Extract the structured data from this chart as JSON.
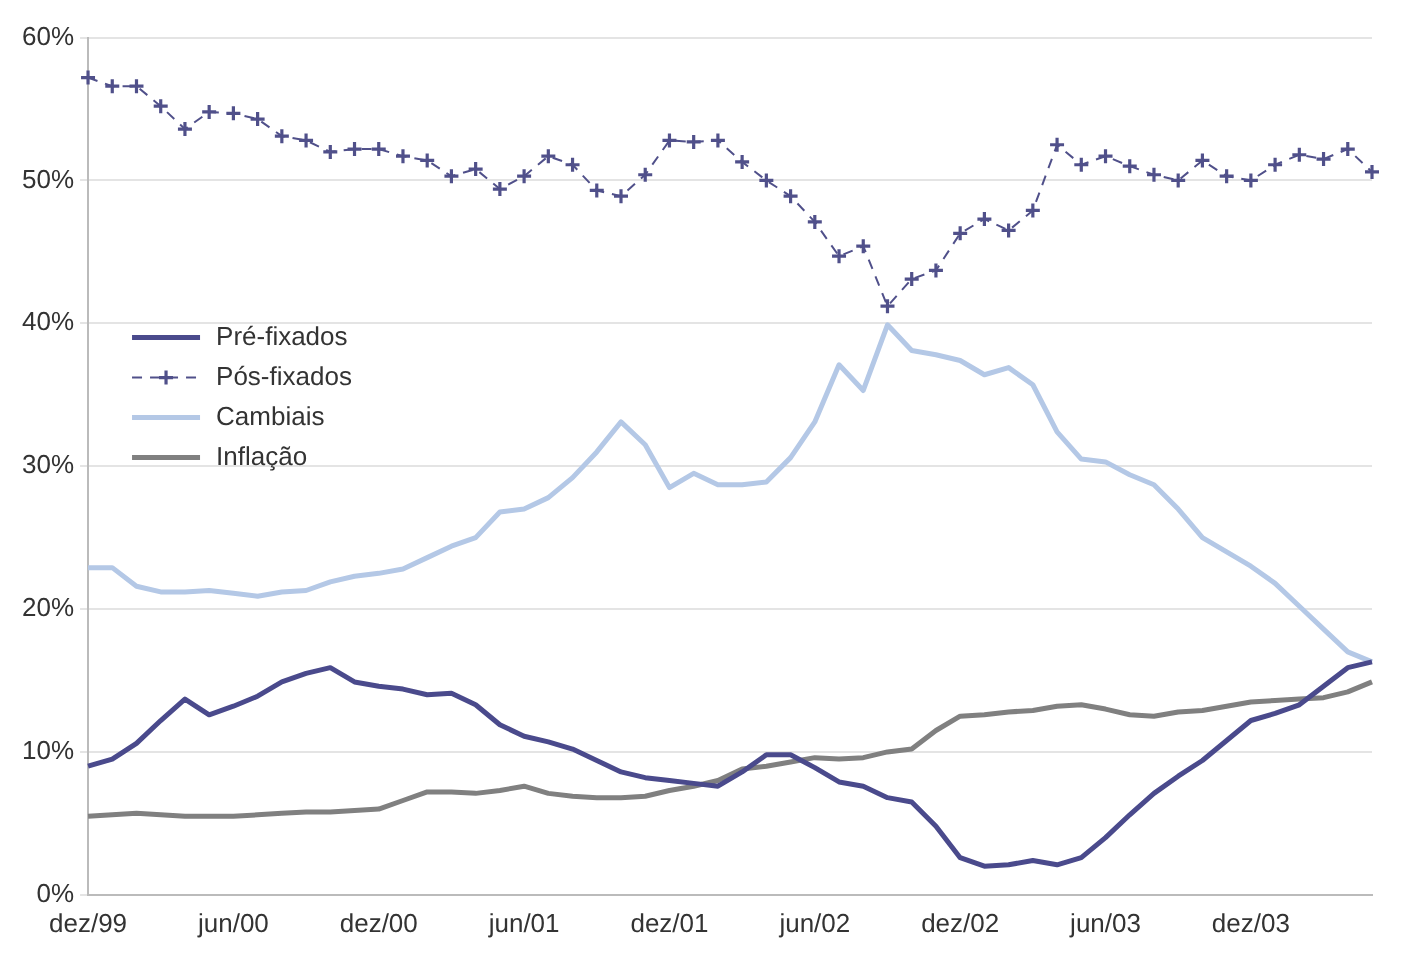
{
  "chart_data": {
    "type": "line",
    "categories": [
      "dez/99",
      null,
      null,
      null,
      null,
      null,
      "jun/00",
      null,
      null,
      null,
      null,
      null,
      "dez/00",
      null,
      null,
      null,
      null,
      null,
      "jun/01",
      null,
      null,
      null,
      null,
      null,
      "dez/01",
      null,
      null,
      null,
      null,
      null,
      "jun/02",
      null,
      null,
      null,
      null,
      null,
      "dez/02",
      null,
      null,
      null,
      null,
      null,
      "jun/03",
      null,
      null,
      null,
      null,
      null,
      "dez/03",
      null,
      null,
      null,
      null,
      null
    ],
    "series": [
      {
        "name": "Pré-fixados",
        "color": "#4a4a8c",
        "marker": "none",
        "line_style": "solid",
        "values": [
          9.0,
          9.5,
          10.6,
          12.2,
          13.7,
          12.6,
          13.2,
          13.9,
          14.9,
          15.5,
          15.9,
          14.9,
          14.6,
          14.4,
          14.0,
          14.1,
          13.3,
          11.9,
          11.1,
          10.7,
          10.2,
          9.4,
          8.6,
          8.2,
          8.0,
          7.8,
          7.6,
          8.6,
          9.8,
          9.8,
          8.9,
          7.9,
          7.6,
          6.8,
          6.5,
          4.8,
          2.6,
          2.0,
          2.1,
          2.4,
          2.1,
          2.6,
          4.0,
          5.6,
          7.1,
          8.3,
          9.4,
          10.8,
          12.2,
          12.7,
          13.3,
          14.6,
          15.9,
          16.3
        ]
      },
      {
        "name": "Pós-fixados",
        "color": "#50508a",
        "marker": "cross",
        "line_style": "dashed",
        "values": [
          57.2,
          56.6,
          56.6,
          55.2,
          53.6,
          54.8,
          54.7,
          54.3,
          53.1,
          52.8,
          52.0,
          52.2,
          52.2,
          51.7,
          51.4,
          50.3,
          50.8,
          49.4,
          50.3,
          51.7,
          51.1,
          49.3,
          48.9,
          50.4,
          52.8,
          52.7,
          52.8,
          51.3,
          50.0,
          48.9,
          47.1,
          44.7,
          45.4,
          41.2,
          43.1,
          43.7,
          46.3,
          47.3,
          46.5,
          47.9,
          52.5,
          51.1,
          51.7,
          51.0,
          50.4,
          50.0,
          51.4,
          50.3,
          50.0,
          51.1,
          51.8,
          51.5,
          52.2,
          50.6
        ]
      },
      {
        "name": "Cambiais",
        "color": "#b4c8e6",
        "marker": "none",
        "line_style": "solid",
        "values": [
          22.9,
          22.9,
          21.6,
          21.2,
          21.2,
          21.3,
          21.1,
          20.9,
          21.2,
          21.3,
          21.9,
          22.3,
          22.5,
          22.8,
          23.6,
          24.4,
          25.0,
          26.8,
          27.0,
          27.8,
          29.2,
          31.0,
          33.1,
          31.5,
          28.5,
          29.5,
          28.7,
          28.7,
          28.9,
          30.6,
          33.1,
          37.1,
          35.3,
          39.9,
          38.1,
          37.8,
          37.4,
          36.4,
          36.9,
          35.7,
          32.4,
          30.5,
          30.3,
          29.4,
          28.7,
          27.0,
          25.0,
          24.0,
          23.0,
          21.8,
          20.2,
          18.6,
          17.0,
          16.3
        ]
      },
      {
        "name": "Inflação",
        "color": "#808080",
        "marker": "none",
        "line_style": "solid",
        "values": [
          5.5,
          5.6,
          5.7,
          5.6,
          5.5,
          5.5,
          5.5,
          5.6,
          5.7,
          5.8,
          5.8,
          5.9,
          6.0,
          6.6,
          7.2,
          7.2,
          7.1,
          7.3,
          7.6,
          7.1,
          6.9,
          6.8,
          6.8,
          6.9,
          7.3,
          7.6,
          8.0,
          8.8,
          9.0,
          9.3,
          9.6,
          9.5,
          9.6,
          10.0,
          10.2,
          11.5,
          12.5,
          12.6,
          12.8,
          12.9,
          13.2,
          13.3,
          13.0,
          12.6,
          12.5,
          12.8,
          12.9,
          13.2,
          13.5,
          13.6,
          13.7,
          13.8,
          14.2,
          14.9
        ]
      }
    ],
    "ylim": [
      0,
      60
    ],
    "yticks": [
      {
        "value": 0,
        "label": "0%"
      },
      {
        "value": 10,
        "label": "10%"
      },
      {
        "value": 20,
        "label": "20%"
      },
      {
        "value": 30,
        "label": "30%"
      },
      {
        "value": 40,
        "label": "40%"
      },
      {
        "value": 50,
        "label": "50%"
      },
      {
        "value": 60,
        "label": "60%"
      }
    ],
    "grid": "y",
    "legend": "left"
  }
}
